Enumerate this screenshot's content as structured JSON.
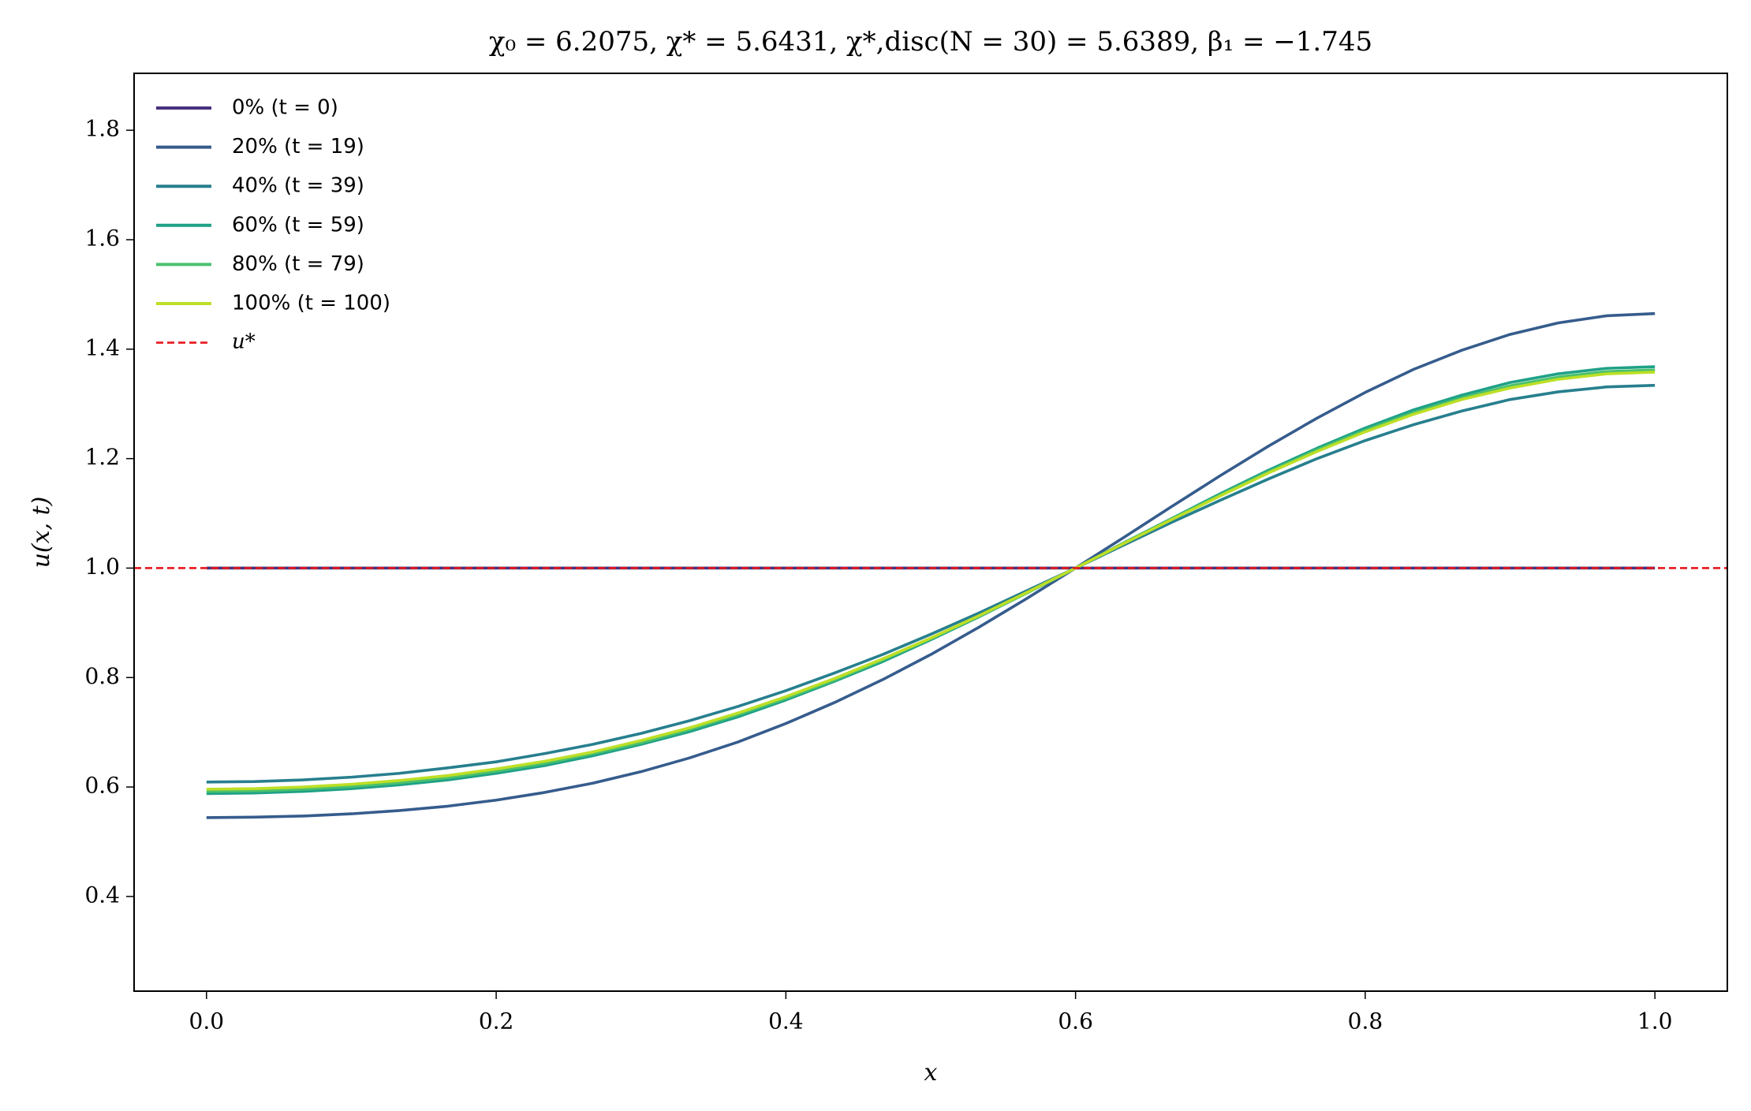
{
  "chart_data": {
    "type": "line",
    "title": "χ₀ = 6.2075,  χ* = 5.6431,  χ*,disc(N = 30) = 5.6389,  β₁ = −1.745",
    "x_label": "x",
    "y_label": "u(x, t)",
    "x": [
      0,
      0.0333,
      0.0667,
      0.1,
      0.1333,
      0.1667,
      0.2,
      0.2333,
      0.2667,
      0.3,
      0.3333,
      0.3667,
      0.4,
      0.4333,
      0.4667,
      0.5,
      0.5333,
      0.5667,
      0.6,
      0.6333,
      0.6667,
      0.7,
      0.7333,
      0.7667,
      0.8,
      0.8333,
      0.8667,
      0.9,
      0.9333,
      0.9667,
      1
    ],
    "series": [
      {
        "name": "0% (t = 0)",
        "color": "#46327e",
        "values": [
          1,
          1,
          1,
          1,
          1,
          1,
          1,
          1,
          1,
          1,
          1,
          1,
          1,
          1,
          1,
          1,
          1,
          1,
          1,
          1,
          1,
          1,
          1,
          1,
          1,
          1,
          1,
          1,
          1,
          1,
          1
        ]
      },
      {
        "name": "20% (t = 19)",
        "color": "#365c8d",
        "values": [
          0.544,
          0.545,
          0.547,
          0.551,
          0.557,
          0.565,
          0.576,
          0.59,
          0.607,
          0.628,
          0.653,
          0.682,
          0.716,
          0.754,
          0.796,
          0.842,
          0.892,
          0.945,
          1.0,
          1.056,
          1.113,
          1.169,
          1.223,
          1.274,
          1.321,
          1.363,
          1.398,
          1.427,
          1.448,
          1.461,
          1.465
        ]
      },
      {
        "name": "40% (t = 39)",
        "color": "#277f8e",
        "values": [
          0.609,
          0.61,
          0.613,
          0.618,
          0.625,
          0.635,
          0.646,
          0.661,
          0.678,
          0.698,
          0.721,
          0.747,
          0.776,
          0.808,
          0.842,
          0.879,
          0.918,
          0.959,
          1.0,
          1.042,
          1.084,
          1.124,
          1.163,
          1.2,
          1.233,
          1.262,
          1.287,
          1.308,
          1.322,
          1.331,
          1.334
        ]
      },
      {
        "name": "60% (t = 59)",
        "color": "#1fa187",
        "values": [
          0.588,
          0.589,
          0.592,
          0.597,
          0.604,
          0.613,
          0.625,
          0.639,
          0.657,
          0.678,
          0.701,
          0.728,
          0.759,
          0.793,
          0.829,
          0.869,
          0.911,
          0.955,
          1.0,
          1.046,
          1.091,
          1.136,
          1.179,
          1.219,
          1.256,
          1.289,
          1.316,
          1.339,
          1.355,
          1.365,
          1.368
        ]
      },
      {
        "name": "80% (t = 79)",
        "color": "#4ac16d",
        "values": [
          0.592,
          0.593,
          0.596,
          0.601,
          0.608,
          0.617,
          0.629,
          0.643,
          0.661,
          0.681,
          0.705,
          0.732,
          0.762,
          0.795,
          0.832,
          0.871,
          0.912,
          0.955,
          1.0,
          1.045,
          1.09,
          1.134,
          1.176,
          1.216,
          1.252,
          1.284,
          1.311,
          1.333,
          1.349,
          1.359,
          1.362
        ]
      },
      {
        "name": "100% (t = 100)",
        "color": "#bddf26",
        "values": [
          0.596,
          0.597,
          0.6,
          0.605,
          0.612,
          0.621,
          0.633,
          0.647,
          0.664,
          0.685,
          0.708,
          0.735,
          0.765,
          0.798,
          0.834,
          0.872,
          0.913,
          0.956,
          1.0,
          1.045,
          1.089,
          1.132,
          1.174,
          1.213,
          1.249,
          1.281,
          1.308,
          1.329,
          1.345,
          1.355,
          1.358
        ]
      }
    ],
    "reference_line": {
      "name": "u*",
      "value": 1,
      "color": "#e8161b",
      "style": "dashed"
    },
    "xlim": [
      -0.05,
      1.05
    ],
    "xticks": [
      {
        "value": 0,
        "label": "0.0"
      },
      0.2,
      0.4,
      0.6,
      0.8,
      {
        "value": 1,
        "label": "1.0"
      }
    ],
    "ylim": [
      0.227,
      1.904
    ],
    "yticks": [
      0.4,
      0.6,
      0.8,
      {
        "value": 1,
        "label": "1.0"
      },
      1.2,
      1.4,
      1.6,
      1.8
    ],
    "grid": false,
    "legend_position": "upper left"
  }
}
